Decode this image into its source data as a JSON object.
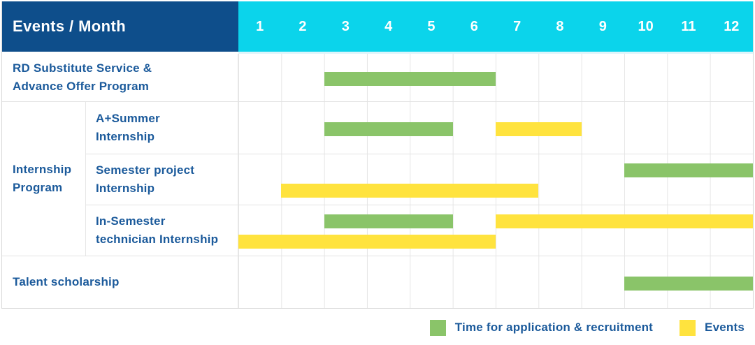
{
  "title": {
    "corner": "Events / Month"
  },
  "header": {
    "months": [
      "1",
      "2",
      "3",
      "4",
      "5",
      "6",
      "7",
      "8",
      "9",
      "10",
      "11",
      "12"
    ]
  },
  "colors": {
    "header_bg": "#0E4E8B",
    "months_bg": "#0BD4EB",
    "bar_green": "#8AC469",
    "bar_yellow": "#FFE33E",
    "text_blue": "#1B5A9B",
    "grid_line": "#E6E6E6",
    "row_line": "#E3E3E3",
    "outer_border": "#D9D9D9",
    "header_underline": "#DEF5FB"
  },
  "rows": {
    "rd": {
      "label_line1": "RD Substitute Service &",
      "label_line2": "Advance Offer Program",
      "bars": [
        {
          "type": "green",
          "start": 3,
          "end": 6,
          "line": "c"
        }
      ]
    },
    "group": {
      "label_line1": "Internship",
      "label_line2": "Program"
    },
    "summer": {
      "label_line1": "A+Summer",
      "label_line2": "Internship",
      "bars": [
        {
          "type": "green",
          "start": 3,
          "end": 5,
          "line": "c"
        },
        {
          "type": "yellow",
          "start": 7,
          "end": 8,
          "line": "c"
        }
      ]
    },
    "semester": {
      "label_line1": "Semester project",
      "label_line2": "Internship",
      "bars": [
        {
          "type": "green",
          "start": 10,
          "end": 12,
          "line": "1"
        },
        {
          "type": "yellow",
          "start": 2,
          "end": 7,
          "line": "2"
        }
      ]
    },
    "technician": {
      "label_line1": "In-Semester",
      "label_line2": "technician Internship",
      "bars": [
        {
          "type": "green",
          "start": 3,
          "end": 5,
          "line": "1"
        },
        {
          "type": "yellow",
          "start": 7,
          "end": 12,
          "line": "1"
        },
        {
          "type": "yellow",
          "start": 1,
          "end": 6,
          "line": "2"
        }
      ]
    },
    "talent": {
      "label_line1": "Talent scholarship",
      "bars": [
        {
          "type": "green",
          "start": 10,
          "end": 12,
          "line": "c"
        }
      ]
    }
  },
  "legend": {
    "items": [
      {
        "type": "green",
        "label": "Time for application & recruitment"
      },
      {
        "type": "yellow",
        "label": "Events"
      }
    ]
  },
  "chart_data": {
    "type": "bar",
    "subtype": "gantt",
    "title": "Events / Month",
    "xlabel": "Month",
    "x_ticks": [
      1,
      2,
      3,
      4,
      5,
      6,
      7,
      8,
      9,
      10,
      11,
      12
    ],
    "x_range": [
      1,
      12
    ],
    "grid": true,
    "legend_position": "bottom-right",
    "series_legend": [
      {
        "name": "Time for application & recruitment",
        "color": "#8AC469"
      },
      {
        "name": "Events",
        "color": "#FFE33E"
      }
    ],
    "tasks": [
      {
        "row": "RD Substitute Service & Advance Offer Program",
        "group": null,
        "bars": [
          {
            "series": "Time for application & recruitment",
            "start_month": 3,
            "end_month": 6
          }
        ]
      },
      {
        "row": "A+Summer Internship",
        "group": "Internship Program",
        "bars": [
          {
            "series": "Time for application & recruitment",
            "start_month": 3,
            "end_month": 5
          },
          {
            "series": "Events",
            "start_month": 7,
            "end_month": 8
          }
        ]
      },
      {
        "row": "Semester project Internship",
        "group": "Internship Program",
        "bars": [
          {
            "series": "Time for application & recruitment",
            "start_month": 10,
            "end_month": 12
          },
          {
            "series": "Events",
            "start_month": 2,
            "end_month": 7
          }
        ]
      },
      {
        "row": "In-Semester technician Internship",
        "group": "Internship Program",
        "bars": [
          {
            "series": "Time for application & recruitment",
            "start_month": 3,
            "end_month": 5
          },
          {
            "series": "Events",
            "start_month": 7,
            "end_month": 12
          },
          {
            "series": "Events",
            "start_month": 1,
            "end_month": 6
          }
        ]
      },
      {
        "row": "Talent scholarship",
        "group": null,
        "bars": [
          {
            "series": "Time for application & recruitment",
            "start_month": 10,
            "end_month": 12
          }
        ]
      }
    ]
  }
}
